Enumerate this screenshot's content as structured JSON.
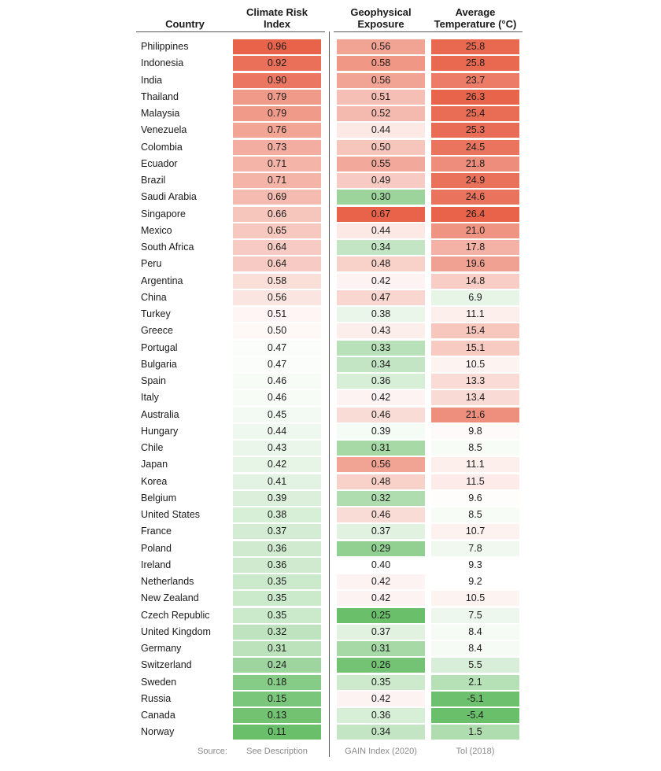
{
  "columns": {
    "country": "Country",
    "cri": "Climate Risk\nIndex",
    "geo": "Geophysical\nExposure",
    "temp": "Average\nTemperature (°C)"
  },
  "source": {
    "label": "Source:",
    "cri": "See Description",
    "geo": "GAIN Index (2020)",
    "temp": "Tol (2018)"
  },
  "colors": {
    "high": "#e8634a",
    "mid": "#ffffff",
    "low": "#6abf6a",
    "divider": "#555555"
  },
  "chart_data": {
    "type": "table",
    "columns": [
      "Country",
      "Climate Risk Index",
      "Geophysical Exposure",
      "Average Temperature (°C)"
    ],
    "rows": [
      [
        "Philippines",
        "0.96",
        "0.56",
        "25.8"
      ],
      [
        "Indonesia",
        "0.92",
        "0.58",
        "25.8"
      ],
      [
        "India",
        "0.90",
        "0.56",
        "23.7"
      ],
      [
        "Thailand",
        "0.79",
        "0.51",
        "26.3"
      ],
      [
        "Malaysia",
        "0.79",
        "0.52",
        "25.4"
      ],
      [
        "Venezuela",
        "0.76",
        "0.44",
        "25.3"
      ],
      [
        "Colombia",
        "0.73",
        "0.50",
        "24.5"
      ],
      [
        "Ecuador",
        "0.71",
        "0.55",
        "21.8"
      ],
      [
        "Brazil",
        "0.71",
        "0.49",
        "24.9"
      ],
      [
        "Saudi Arabia",
        "0.69",
        "0.30",
        "24.6"
      ],
      [
        "Singapore",
        "0.66",
        "0.67",
        "26.4"
      ],
      [
        "Mexico",
        "0.65",
        "0.44",
        "21.0"
      ],
      [
        "South Africa",
        "0.64",
        "0.34",
        "17.8"
      ],
      [
        "Peru",
        "0.64",
        "0.48",
        "19.6"
      ],
      [
        "Argentina",
        "0.58",
        "0.42",
        "14.8"
      ],
      [
        "China",
        "0.56",
        "0.47",
        "6.9"
      ],
      [
        "Turkey",
        "0.51",
        "0.38",
        "11.1"
      ],
      [
        "Greece",
        "0.50",
        "0.43",
        "15.4"
      ],
      [
        "Portugal",
        "0.47",
        "0.33",
        "15.1"
      ],
      [
        "Bulgaria",
        "0.47",
        "0.34",
        "10.5"
      ],
      [
        "Spain",
        "0.46",
        "0.36",
        "13.3"
      ],
      [
        "Italy",
        "0.46",
        "0.42",
        "13.4"
      ],
      [
        "Australia",
        "0.45",
        "0.46",
        "21.6"
      ],
      [
        "Hungary",
        "0.44",
        "0.39",
        "9.8"
      ],
      [
        "Chile",
        "0.43",
        "0.31",
        "8.5"
      ],
      [
        "Japan",
        "0.42",
        "0.56",
        "11.1"
      ],
      [
        "Korea",
        "0.41",
        "0.48",
        "11.5"
      ],
      [
        "Belgium",
        "0.39",
        "0.32",
        "9.6"
      ],
      [
        "United States",
        "0.38",
        "0.46",
        "8.5"
      ],
      [
        "France",
        "0.37",
        "0.37",
        "10.7"
      ],
      [
        "Poland",
        "0.36",
        "0.29",
        "7.8"
      ],
      [
        "Ireland",
        "0.36",
        "0.40",
        "9.3"
      ],
      [
        "Netherlands",
        "0.35",
        "0.42",
        "9.2"
      ],
      [
        "New Zealand",
        "0.35",
        "0.42",
        "10.5"
      ],
      [
        "Czech Republic",
        "0.35",
        "0.25",
        "7.5"
      ],
      [
        "United Kingdom",
        "0.32",
        "0.37",
        "8.4"
      ],
      [
        "Germany",
        "0.31",
        "0.31",
        "8.4"
      ],
      [
        "Switzerland",
        "0.24",
        "0.26",
        "5.5"
      ],
      [
        "Sweden",
        "0.18",
        "0.35",
        "2.1"
      ],
      [
        "Russia",
        "0.15",
        "0.42",
        "-5.1"
      ],
      [
        "Canada",
        "0.13",
        "0.36",
        "-5.4"
      ],
      [
        "Norway",
        "0.11",
        "0.34",
        "1.5"
      ]
    ],
    "color_scale": {
      "cri": {
        "low": 0.11,
        "mid": 0.48,
        "high": 0.96
      },
      "geo": {
        "low": 0.25,
        "mid": 0.4,
        "high": 0.67
      },
      "temp": {
        "low": -5.4,
        "mid": 9.3,
        "high": 26.4
      }
    }
  }
}
